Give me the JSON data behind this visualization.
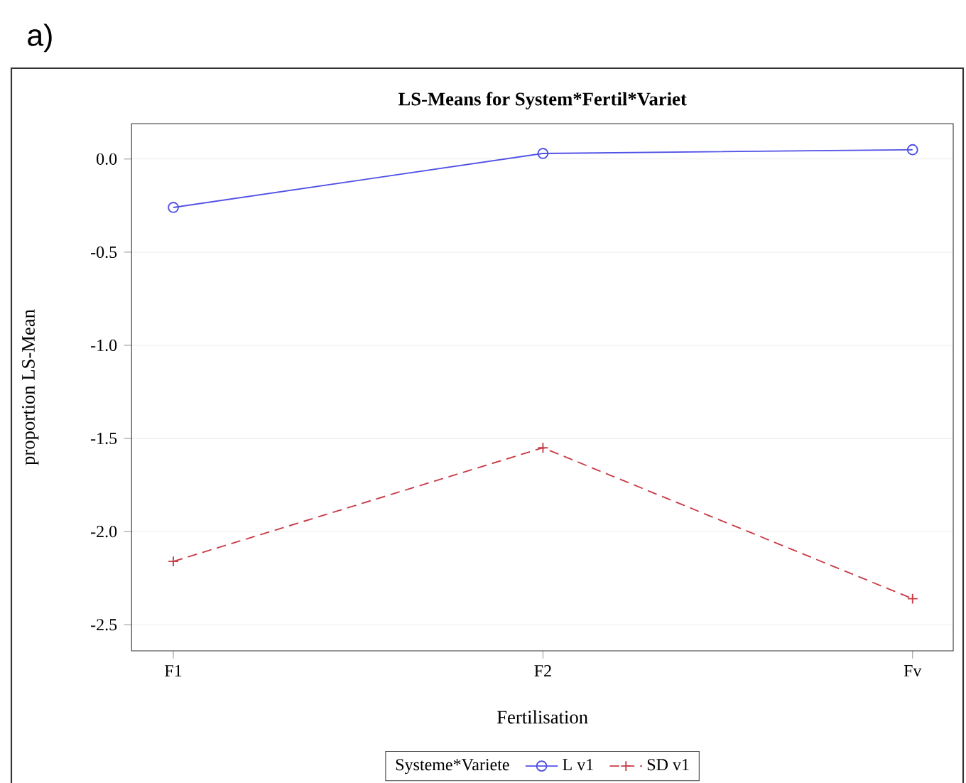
{
  "chart_data": {
    "type": "line",
    "title": "LS-Means for System*Fertil*Variet",
    "xlabel": "Fertilisation",
    "ylabel": "proportion LS-Mean",
    "legend_title": "Systeme*Variete",
    "annotations": [
      "a)"
    ],
    "categories": [
      "F1",
      "F2",
      "Fv"
    ],
    "series": [
      {
        "name": "L v1",
        "color": "#5050e6",
        "values": [
          -0.26,
          0.03,
          0.05
        ],
        "marker": "circle",
        "line_style": "solid"
      },
      {
        "name": "SD v1",
        "color": "#c83c46",
        "values": [
          -2.16,
          -1.55,
          -2.36
        ],
        "marker": "cross",
        "line_style": "dashed"
      }
    ],
    "ylim": [
      -2.64,
      0.19
    ],
    "yticks": [
      {
        "value": 0,
        "label": "0.0"
      },
      -0.5,
      {
        "value": -1,
        "label": "-1.0"
      },
      -1.5,
      {
        "value": -2,
        "label": "-2.0"
      },
      -2.5
    ],
    "grid": "y",
    "legend": "bottom"
  }
}
